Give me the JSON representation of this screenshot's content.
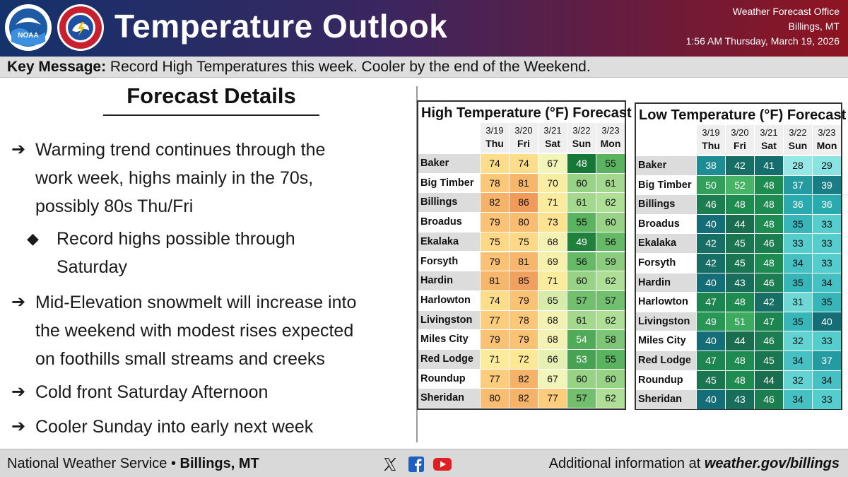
{
  "header": {
    "title": "Temperature Outlook",
    "office_line1": "Weather Forecast Office",
    "office_line2": "Billings, MT",
    "timestamp": "1:56 AM Thursday, March 19, 2026",
    "logo_noaa_text": "NOAA"
  },
  "key_message": {
    "label": "Key Message:",
    "text": "Record High Temperatures this week. Cooler by the end of the Weekend."
  },
  "details": {
    "title": "Forecast Details",
    "bullets": [
      {
        "lines": [
          "Warming trend continues through the",
          "work week, highs mainly in the 70s,",
          "possibly 80s Thu/Fri"
        ]
      },
      {
        "lines": [
          "Mid-Elevation snowmelt will increase into",
          "the weekend with modest rises expected",
          "on foothills small streams and creeks"
        ]
      },
      {
        "lines": [
          "Cold front Saturday Afternoon"
        ]
      },
      {
        "lines": [
          "Cooler Sunday into early next week"
        ]
      }
    ],
    "sub_bullet": {
      "lines": [
        "Record highs possible through",
        "Saturday"
      ]
    }
  },
  "columns": [
    {
      "date": "3/19",
      "day": "Thu"
    },
    {
      "date": "3/20",
      "day": "Fri"
    },
    {
      "date": "3/21",
      "day": "Sat"
    },
    {
      "date": "3/22",
      "day": "Sun"
    },
    {
      "date": "3/23",
      "day": "Mon"
    }
  ],
  "cities": [
    "Baker",
    "Big Timber",
    "Billings",
    "Broadus",
    "Ekalaka",
    "Forsyth",
    "Hardin",
    "Harlowton",
    "Livingston",
    "Miles City",
    "Red Lodge",
    "Roundup",
    "Sheridan"
  ],
  "high_table": {
    "title": "High Temperature (°F) Forecast",
    "values": [
      [
        74,
        74,
        67,
        48,
        55
      ],
      [
        78,
        81,
        70,
        60,
        61
      ],
      [
        82,
        86,
        71,
        61,
        62
      ],
      [
        79,
        80,
        73,
        55,
        60
      ],
      [
        75,
        75,
        68,
        49,
        56
      ],
      [
        79,
        81,
        69,
        56,
        59
      ],
      [
        81,
        85,
        71,
        60,
        62
      ],
      [
        74,
        79,
        65,
        57,
        57
      ],
      [
        77,
        78,
        68,
        61,
        62
      ],
      [
        79,
        79,
        68,
        54,
        58
      ],
      [
        71,
        72,
        66,
        53,
        55
      ],
      [
        77,
        82,
        67,
        60,
        60
      ],
      [
        80,
        82,
        77,
        57,
        62
      ]
    ]
  },
  "low_table": {
    "title": "Low Temperature (°F) Forecast",
    "values": [
      [
        38,
        42,
        41,
        28,
        29
      ],
      [
        50,
        52,
        48,
        37,
        39
      ],
      [
        46,
        48,
        48,
        36,
        36
      ],
      [
        40,
        44,
        48,
        35,
        33
      ],
      [
        42,
        45,
        46,
        33,
        33
      ],
      [
        42,
        45,
        48,
        34,
        33
      ],
      [
        40,
        43,
        46,
        35,
        34
      ],
      [
        47,
        48,
        42,
        31,
        35
      ],
      [
        49,
        51,
        47,
        35,
        40
      ],
      [
        40,
        44,
        46,
        32,
        33
      ],
      [
        47,
        48,
        45,
        34,
        37
      ],
      [
        45,
        48,
        44,
        32,
        34
      ],
      [
        40,
        43,
        46,
        34,
        33
      ]
    ]
  },
  "footer": {
    "left_plain": "National Weather Service •",
    "left_bold": "Billings, MT",
    "right_plain": "Additional information at",
    "right_bold": "weather.gov/billings",
    "icons": [
      "x-icon",
      "facebook-icon",
      "youtube-icon"
    ]
  },
  "colors": {
    "header_left": "#14326b",
    "header_right": "#8f1420",
    "accent_low_dark": "#0f4a52"
  }
}
